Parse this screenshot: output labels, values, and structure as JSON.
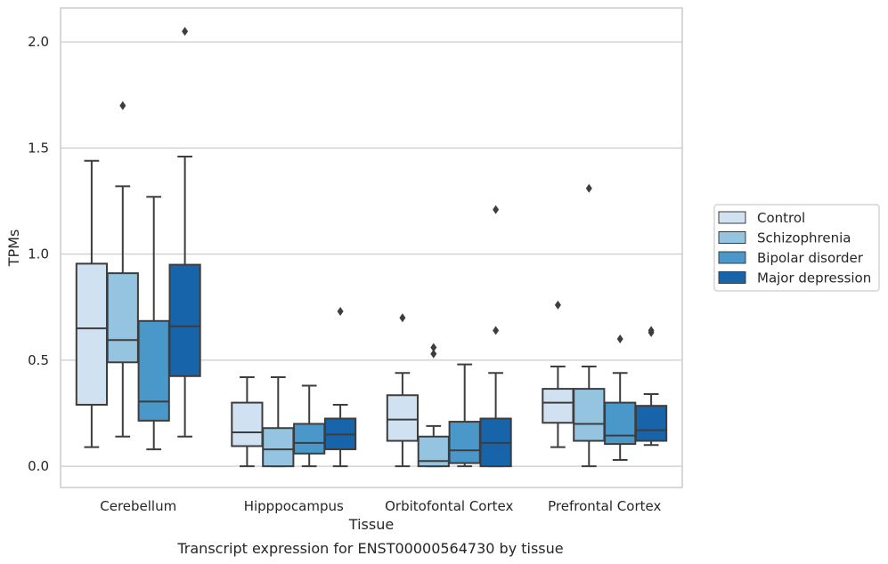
{
  "chart_data": {
    "type": "box",
    "caption": "Transcript expression for ENST00000564730 by tissue",
    "xlabel": "Tissue",
    "ylabel": "TPMs",
    "ylim": [
      -0.1,
      2.16
    ],
    "yticks": [
      "0.0",
      "0.5",
      "1.0",
      "1.5",
      "2.0"
    ],
    "ytick_values": [
      0.0,
      0.5,
      1.0,
      1.5,
      2.0
    ],
    "grid": "horizontal",
    "legend_position": "right",
    "categories": [
      "Cerebellum",
      "Hipppocampus",
      "Orbitofontal Cortex",
      "Prefrontal Cortex"
    ],
    "series": [
      {
        "name": "Control",
        "color": "#d0e1f2",
        "boxes": [
          {
            "min": 0.09,
            "q1": 0.29,
            "median": 0.65,
            "q3": 0.955,
            "max": 1.44,
            "outliers": []
          },
          {
            "min": 0.0,
            "q1": 0.095,
            "median": 0.16,
            "q3": 0.3,
            "max": 0.42,
            "outliers": []
          },
          {
            "min": 0.0,
            "q1": 0.12,
            "median": 0.22,
            "q3": 0.335,
            "max": 0.44,
            "outliers": [
              0.7
            ]
          },
          {
            "min": 0.09,
            "q1": 0.205,
            "median": 0.3,
            "q3": 0.365,
            "max": 0.47,
            "outliers": [
              0.76
            ]
          }
        ]
      },
      {
        "name": "Schizophrenia",
        "color": "#94c4df",
        "boxes": [
          {
            "min": 0.14,
            "q1": 0.49,
            "median": 0.595,
            "q3": 0.91,
            "max": 1.32,
            "outliers": [
              1.7
            ]
          },
          {
            "min": 0.0,
            "q1": 0.0,
            "median": 0.08,
            "q3": 0.18,
            "max": 0.42,
            "outliers": []
          },
          {
            "min": 0.0,
            "q1": 0.0,
            "median": 0.025,
            "q3": 0.14,
            "max": 0.19,
            "outliers": [
              0.53,
              0.56
            ]
          },
          {
            "min": 0.0,
            "q1": 0.12,
            "median": 0.2,
            "q3": 0.365,
            "max": 0.47,
            "outliers": [
              1.31
            ]
          }
        ]
      },
      {
        "name": "Bipolar disorder",
        "color": "#4a98c9",
        "boxes": [
          {
            "min": 0.08,
            "q1": 0.215,
            "median": 0.305,
            "q3": 0.685,
            "max": 1.27,
            "outliers": []
          },
          {
            "min": 0.0,
            "q1": 0.06,
            "median": 0.11,
            "q3": 0.2,
            "max": 0.38,
            "outliers": []
          },
          {
            "min": 0.0,
            "q1": 0.015,
            "median": 0.075,
            "q3": 0.21,
            "max": 0.48,
            "outliers": []
          },
          {
            "min": 0.03,
            "q1": 0.105,
            "median": 0.145,
            "q3": 0.3,
            "max": 0.44,
            "outliers": [
              0.6
            ]
          }
        ]
      },
      {
        "name": "Major depression",
        "color": "#1764ab",
        "boxes": [
          {
            "min": 0.14,
            "q1": 0.425,
            "median": 0.66,
            "q3": 0.95,
            "max": 1.46,
            "outliers": [
              2.05
            ]
          },
          {
            "min": 0.0,
            "q1": 0.08,
            "median": 0.15,
            "q3": 0.225,
            "max": 0.29,
            "outliers": [
              0.73
            ]
          },
          {
            "min": 0.0,
            "q1": 0.0,
            "median": 0.11,
            "q3": 0.225,
            "max": 0.44,
            "outliers": [
              0.64,
              1.21
            ]
          },
          {
            "min": 0.1,
            "q1": 0.12,
            "median": 0.17,
            "q3": 0.285,
            "max": 0.34,
            "outliers": [
              0.63,
              0.64
            ]
          }
        ]
      }
    ]
  }
}
